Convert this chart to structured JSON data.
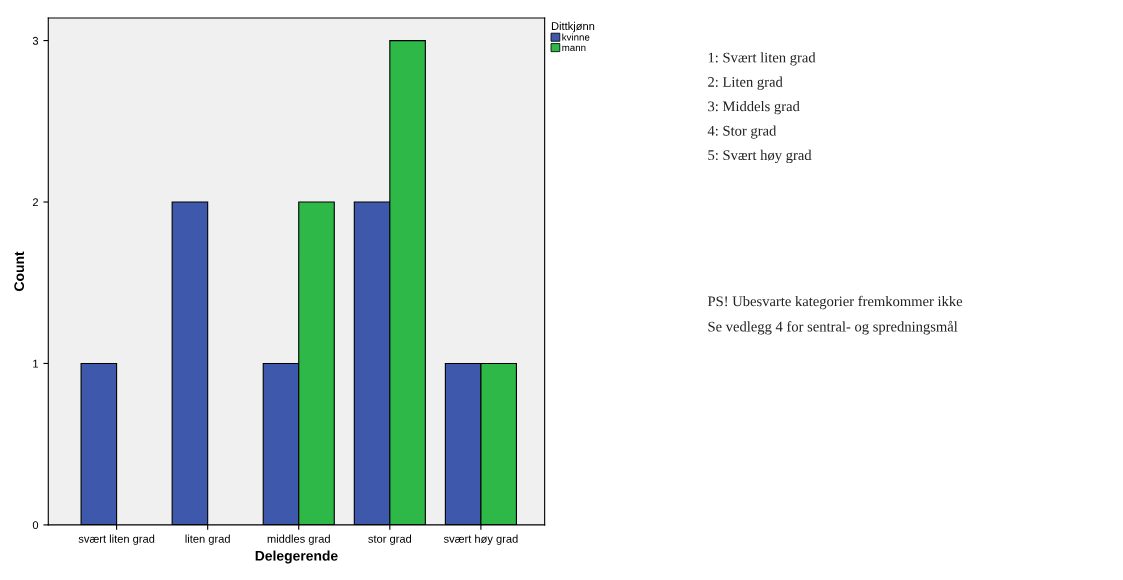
{
  "chart_data": {
    "type": "bar",
    "xlabel": "Delegerende",
    "ylabel": "Count",
    "legend_title": "Dittkjønn",
    "categories": [
      "svært liten grad",
      "liten grad",
      "middles grad",
      "stor grad",
      "svært høy grad"
    ],
    "series": [
      {
        "name": "kvinne",
        "color": "#3e58ac",
        "values": [
          1,
          2,
          1,
          2,
          1
        ]
      },
      {
        "name": "mann",
        "color": "#2eb848",
        "values": [
          null,
          null,
          2,
          3,
          1
        ]
      }
    ],
    "ylim": [
      0,
      3.14
    ],
    "yticks": [
      0,
      1,
      2,
      3
    ],
    "grid": false,
    "legend": "top right",
    "annotations": [
      "1: Svært liten grad\n2: Liten grad\n3: Middels grad\n4: Stor grad\n5: Svært høy grad",
      "PS! Ubesvarte kategorier fremkommer ikke\nSe vedlegg 4 for sentral- og spredningsmål"
    ]
  }
}
